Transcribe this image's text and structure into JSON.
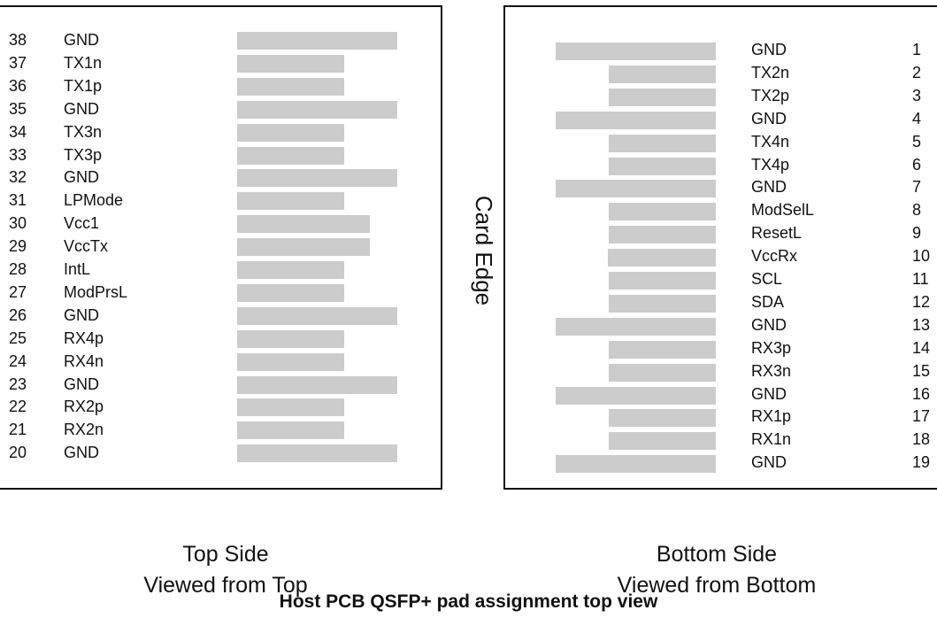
{
  "top_side": {
    "pins": [
      {
        "number": "38",
        "name": "GND",
        "pad": "long"
      },
      {
        "number": "37",
        "name": "TX1n",
        "pad": "short"
      },
      {
        "number": "36",
        "name": "TX1p",
        "pad": "short"
      },
      {
        "number": "35",
        "name": "GND",
        "pad": "long"
      },
      {
        "number": "34",
        "name": "TX3n",
        "pad": "short"
      },
      {
        "number": "33",
        "name": "TX3p",
        "pad": "short"
      },
      {
        "number": "32",
        "name": "GND",
        "pad": "long"
      },
      {
        "number": "31",
        "name": "LPMode",
        "pad": "short"
      },
      {
        "number": "30",
        "name": "Vcc1",
        "pad": "medium"
      },
      {
        "number": "29",
        "name": "VccTx",
        "pad": "medium"
      },
      {
        "number": "28",
        "name": "IntL",
        "pad": "short"
      },
      {
        "number": "27",
        "name": "ModPrsL",
        "pad": "short"
      },
      {
        "number": "26",
        "name": "GND",
        "pad": "long"
      },
      {
        "number": "25",
        "name": "RX4p",
        "pad": "short"
      },
      {
        "number": "24",
        "name": "RX4n",
        "pad": "short"
      },
      {
        "number": "23",
        "name": "GND",
        "pad": "long"
      },
      {
        "number": "22",
        "name": "RX2p",
        "pad": "short"
      },
      {
        "number": "21",
        "name": "RX2n",
        "pad": "short"
      },
      {
        "number": "20",
        "name": "GND",
        "pad": "long"
      }
    ],
    "caption_line1": "Top Side",
    "caption_line2": "Viewed from Top"
  },
  "bottom_side": {
    "pins": [
      {
        "number": "1",
        "name": "GND",
        "pad": "long"
      },
      {
        "number": "2",
        "name": "TX2n",
        "pad": "short"
      },
      {
        "number": "3",
        "name": "TX2p",
        "pad": "short"
      },
      {
        "number": "4",
        "name": "GND",
        "pad": "long"
      },
      {
        "number": "5",
        "name": "TX4n",
        "pad": "short"
      },
      {
        "number": "6",
        "name": "TX4p",
        "pad": "short"
      },
      {
        "number": "7",
        "name": "GND",
        "pad": "long"
      },
      {
        "number": "8",
        "name": "ModSelL",
        "pad": "short"
      },
      {
        "number": "9",
        "name": "ResetL",
        "pad": "short"
      },
      {
        "number": "10",
        "name": "VccRx",
        "pad": "medium"
      },
      {
        "number": "11",
        "name": "SCL",
        "pad": "short"
      },
      {
        "number": "12",
        "name": "SDA",
        "pad": "short"
      },
      {
        "number": "13",
        "name": "GND",
        "pad": "long"
      },
      {
        "number": "14",
        "name": "RX3p",
        "pad": "short"
      },
      {
        "number": "15",
        "name": "RX3n",
        "pad": "short"
      },
      {
        "number": "16",
        "name": "GND",
        "pad": "long"
      },
      {
        "number": "17",
        "name": "RX1p",
        "pad": "short"
      },
      {
        "number": "18",
        "name": "RX1n",
        "pad": "short"
      },
      {
        "number": "19",
        "name": "GND",
        "pad": "long"
      }
    ],
    "caption_line1": "Bottom Side",
    "caption_line2": "Viewed from Bottom"
  },
  "card_edge_label": "Card Edge",
  "figure_caption": "Host PCB QSFP+ pad assignment top view",
  "colors": {
    "pad": "#cccccc",
    "border": "#111111",
    "text": "#111111"
  }
}
